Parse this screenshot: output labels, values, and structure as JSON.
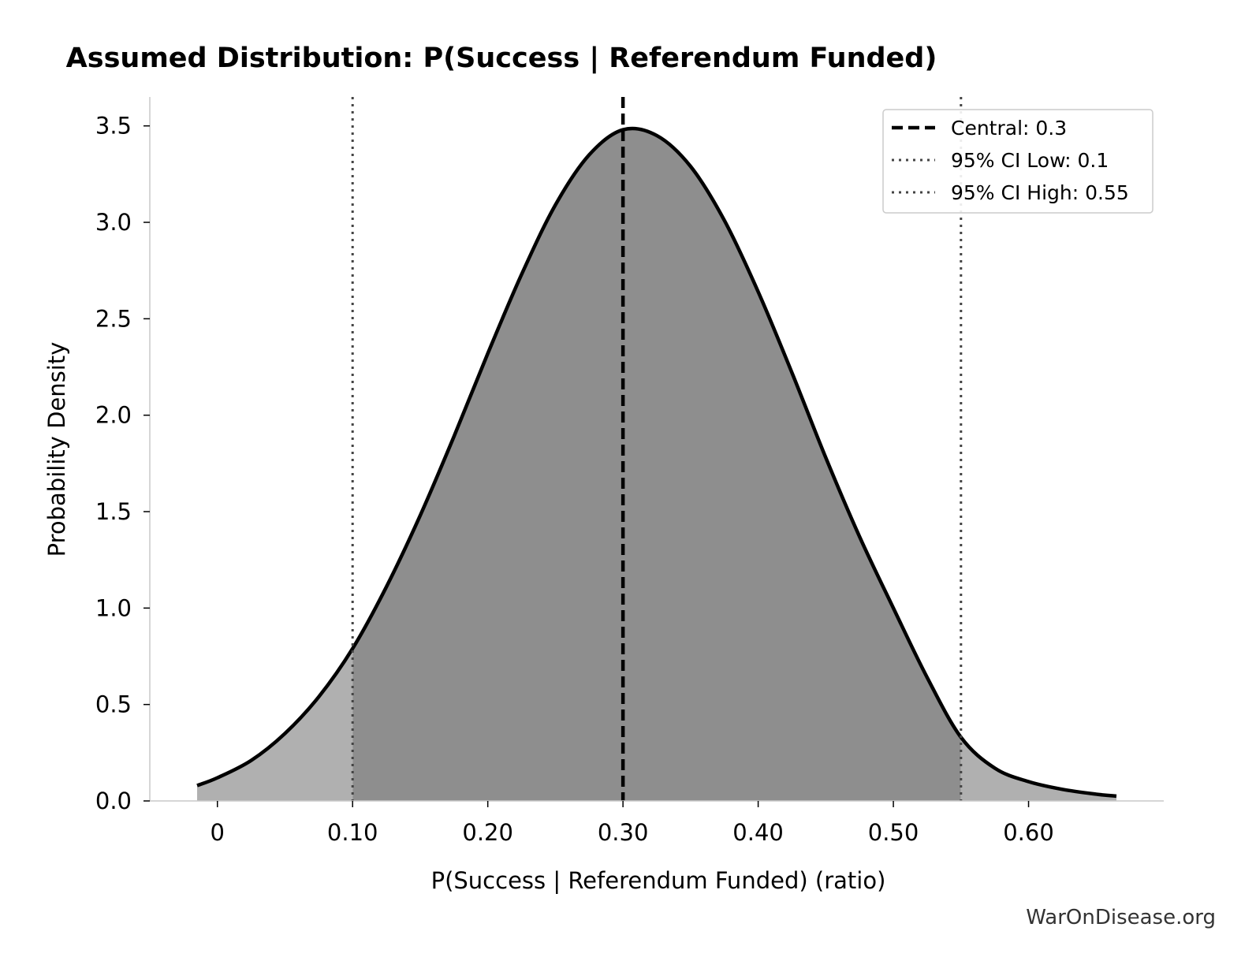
{
  "chart_data": {
    "type": "area",
    "title": "Assumed Distribution: P(Success | Referendum Funded)",
    "xlabel": "P(Success | Referendum Funded) (ratio)",
    "ylabel": "Probability Density",
    "xlim": [
      -0.05,
      0.7
    ],
    "ylim": [
      0,
      3.65
    ],
    "x_ticks": [
      0,
      0.1,
      0.2,
      0.3,
      0.4,
      0.5,
      0.6
    ],
    "x_tick_labels": [
      "0",
      "0.10",
      "0.20",
      "0.30",
      "0.40",
      "0.50",
      "0.60"
    ],
    "y_ticks": [
      0,
      0.5,
      1.0,
      1.5,
      2.0,
      2.5,
      3.0,
      3.5
    ],
    "y_tick_labels": [
      "0.0",
      "0.5",
      "1.0",
      "1.5",
      "2.0",
      "2.5",
      "3.0",
      "3.5"
    ],
    "grid": false,
    "legend_position": "top-right",
    "series": [
      {
        "name": "density",
        "color": "#000000",
        "x": [
          -0.015,
          0.0,
          0.025,
          0.05,
          0.075,
          0.1,
          0.125,
          0.15,
          0.175,
          0.2,
          0.225,
          0.25,
          0.275,
          0.3,
          0.325,
          0.35,
          0.375,
          0.4,
          0.425,
          0.45,
          0.475,
          0.5,
          0.525,
          0.55,
          0.575,
          0.6,
          0.625,
          0.65,
          0.665
        ],
        "y": [
          0.08,
          0.12,
          0.21,
          0.35,
          0.54,
          0.79,
          1.11,
          1.48,
          1.89,
          2.32,
          2.73,
          3.09,
          3.35,
          3.48,
          3.45,
          3.29,
          3.01,
          2.64,
          2.22,
          1.78,
          1.37,
          1.0,
          0.64,
          0.33,
          0.17,
          0.1,
          0.06,
          0.035,
          0.025
        ]
      }
    ],
    "shaded_regions": [
      {
        "from": -0.015,
        "to": 0.1,
        "fill": "#b0b0b0"
      },
      {
        "from": 0.1,
        "to": 0.55,
        "fill": "#8e8e8e"
      },
      {
        "from": 0.55,
        "to": 0.665,
        "fill": "#b0b0b0"
      }
    ],
    "reference_lines": [
      {
        "label": "Central: 0.3",
        "x": 0.3,
        "style": "dashed",
        "color": "#000000"
      },
      {
        "label": "95% CI Low: 0.1",
        "x": 0.1,
        "style": "dotted",
        "color": "#444444"
      },
      {
        "label": "95% CI High: 0.55",
        "x": 0.55,
        "style": "dotted",
        "color": "#444444"
      }
    ],
    "watermark": "WarOnDisease.org"
  }
}
